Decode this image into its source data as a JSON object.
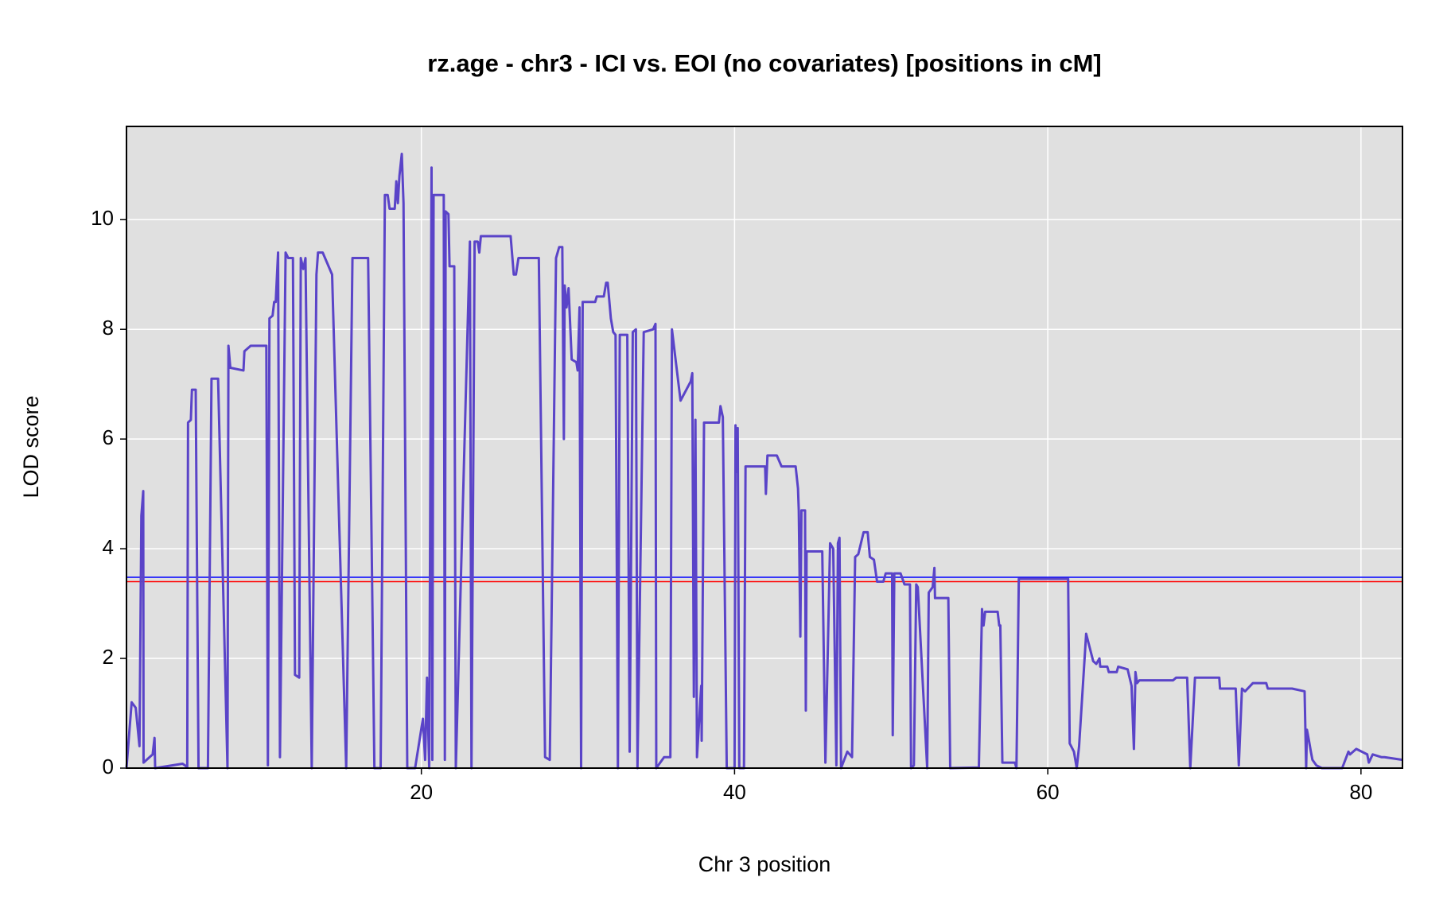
{
  "chart_data": {
    "type": "line",
    "title": "rz.age - chr3 - ICI vs. EOI (no covariates) [positions in cM]",
    "x_label": "Chr 3 position",
    "y_label": "LOD score",
    "color": "#5a44c8",
    "x": [
      1.17,
      1.5,
      1.76,
      2.0,
      2.12,
      2.24,
      2.26,
      2.84,
      2.96,
      3.0,
      4.75,
      5.05,
      5.1,
      5.28,
      5.35,
      5.59,
      5.77,
      6.37,
      6.6,
      7.02,
      7.62,
      7.68,
      7.8,
      8.64,
      8.7,
      9.1,
      10.1,
      10.2,
      10.3,
      10.5,
      10.6,
      10.7,
      10.85,
      10.97,
      11.33,
      11.5,
      11.8,
      11.93,
      12.2,
      12.3,
      12.46,
      12.6,
      13.0,
      13.3,
      13.4,
      13.7,
      14.3,
      15.2,
      15.6,
      16.6,
      17.0,
      17.4,
      17.67,
      17.85,
      17.97,
      18.3,
      18.4,
      18.5,
      18.6,
      18.75,
      18.86,
      19.1,
      19.6,
      20.1,
      20.24,
      20.36,
      20.5,
      20.65,
      20.7,
      20.78,
      21.43,
      21.5,
      21.55,
      21.73,
      21.8,
      22.1,
      22.2,
      23.1,
      23.2,
      23.4,
      23.6,
      23.7,
      23.8,
      25.7,
      25.9,
      26.04,
      26.2,
      27.5,
      27.9,
      28.2,
      28.6,
      28.8,
      29.0,
      29.1,
      29.15,
      29.27,
      29.4,
      29.6,
      29.9,
      29.98,
      30.1,
      30.2,
      30.3,
      31.1,
      31.2,
      31.65,
      31.8,
      31.9,
      32.1,
      32.25,
      32.4,
      32.55,
      32.67,
      33.15,
      33.3,
      33.5,
      33.7,
      33.8,
      34.2,
      34.8,
      34.95,
      35.0,
      35.5,
      35.9,
      36.0,
      36.55,
      37.2,
      37.3,
      37.4,
      37.5,
      37.6,
      37.87,
      37.9,
      38.05,
      39.0,
      39.1,
      39.25,
      39.5,
      40.0,
      40.06,
      40.1,
      40.2,
      40.3,
      40.6,
      40.7,
      40.95,
      41.7,
      41.95,
      42.0,
      42.1,
      42.7,
      43.0,
      43.9,
      44.05,
      44.1,
      44.2,
      44.27,
      44.5,
      44.55,
      44.6,
      45.6,
      45.8,
      46.1,
      46.3,
      46.5,
      46.6,
      46.7,
      46.8,
      47.2,
      47.5,
      47.7,
      47.9,
      48.24,
      48.5,
      48.64,
      48.9,
      49.1,
      49.5,
      49.65,
      50.06,
      50.1,
      50.2,
      50.6,
      50.85,
      51.2,
      51.27,
      51.45,
      51.6,
      51.7,
      52.3,
      52.4,
      52.65,
      52.76,
      52.8,
      53.06,
      53.65,
      53.77,
      55.6,
      55.8,
      55.9,
      56.0,
      56.8,
      56.9,
      56.97,
      57.1,
      57.9,
      58.0,
      58.15,
      61.3,
      61.4,
      61.67,
      61.85,
      62.0,
      62.45,
      62.9,
      63.1,
      63.3,
      63.35,
      63.8,
      63.9,
      64.4,
      64.5,
      65.1,
      65.35,
      65.5,
      65.6,
      65.7,
      65.85,
      68.0,
      68.2,
      68.9,
      69.1,
      69.4,
      70.95,
      71.0,
      72.0,
      72.2,
      72.4,
      72.6,
      73.1,
      73.95,
      74.05,
      75.6,
      76.4,
      76.5,
      76.55,
      76.68,
      76.8,
      76.9,
      77.15,
      77.5,
      78.8,
      79.2,
      79.3,
      79.7,
      80.4,
      80.5,
      80.75,
      81.3,
      81.5,
      82.65
    ],
    "values": [
      0,
      1.2,
      1.1,
      0.4,
      4.6,
      5.05,
      0.1,
      0.25,
      0.55,
      0,
      0.08,
      0.02,
      6.3,
      6.35,
      6.9,
      6.9,
      0,
      0,
      7.1,
      7.1,
      0,
      7.7,
      7.3,
      7.25,
      7.6,
      7.7,
      7.7,
      0.05,
      8.2,
      8.25,
      8.5,
      8.5,
      9.4,
      0.2,
      9.4,
      9.3,
      9.3,
      1.7,
      1.65,
      9.3,
      9.1,
      9.3,
      0,
      9.0,
      9.4,
      9.4,
      9.0,
      0,
      9.3,
      9.3,
      0,
      0,
      10.45,
      10.45,
      10.2,
      10.2,
      10.7,
      10.3,
      10.8,
      11.2,
      10.3,
      0,
      0,
      0.9,
      0.15,
      1.65,
      0,
      10.95,
      0.15,
      10.45,
      10.45,
      0.15,
      10.15,
      10.1,
      9.15,
      9.15,
      0,
      9.6,
      0,
      9.6,
      9.6,
      9.4,
      9.7,
      9.7,
      9.0,
      9.0,
      9.3,
      9.3,
      0.2,
      0.15,
      9.3,
      9.5,
      9.5,
      6.0,
      8.8,
      8.4,
      8.75,
      7.45,
      7.4,
      7.25,
      8.4,
      0,
      8.5,
      8.5,
      8.6,
      8.6,
      8.85,
      8.85,
      8.2,
      7.95,
      7.9,
      0,
      7.9,
      7.9,
      0.3,
      7.95,
      8.0,
      0,
      7.95,
      8.0,
      8.1,
      0,
      0.2,
      0.2,
      8.0,
      6.7,
      7.05,
      7.2,
      1.3,
      6.35,
      0.2,
      1.5,
      0.5,
      6.3,
      6.3,
      6.6,
      6.4,
      0,
      0,
      6.25,
      5.4,
      6.2,
      0,
      0,
      5.5,
      5.5,
      5.5,
      5.5,
      5.0,
      5.7,
      5.7,
      5.5,
      5.5,
      5.1,
      4.7,
      2.4,
      4.7,
      4.7,
      1.05,
      3.95,
      3.95,
      0.1,
      4.1,
      4.0,
      0.05,
      4.1,
      4.2,
      0,
      0.3,
      0.2,
      3.85,
      3.9,
      4.3,
      4.3,
      3.85,
      3.8,
      3.4,
      3.4,
      3.55,
      3.55,
      0.6,
      3.55,
      3.55,
      3.35,
      3.35,
      0,
      0.05,
      3.35,
      3.3,
      0,
      3.2,
      3.3,
      3.65,
      3.1,
      3.1,
      3.1,
      0,
      0.01,
      2.9,
      2.6,
      2.85,
      2.85,
      2.6,
      2.6,
      0.1,
      0.1,
      0,
      3.45,
      3.45,
      0.45,
      0.3,
      0,
      0.4,
      2.45,
      1.95,
      1.9,
      2.0,
      1.85,
      1.85,
      1.75,
      1.75,
      1.85,
      1.8,
      1.5,
      0.35,
      1.75,
      1.55,
      1.6,
      1.6,
      1.65,
      1.65,
      0,
      1.65,
      1.65,
      1.45,
      1.45,
      0.05,
      1.45,
      1.4,
      1.55,
      1.55,
      1.45,
      1.45,
      1.4,
      0,
      0.7,
      0.5,
      0.3,
      0.15,
      0.05,
      0,
      0,
      0.3,
      0.25,
      0.35,
      0.25,
      0.1,
      0.25,
      0.2,
      0.2,
      0.15
    ],
    "thresholds": [
      {
        "value": 3.48,
        "color": "#0000ff"
      },
      {
        "value": 3.4,
        "color": "#ff0000"
      }
    ],
    "xlim": [
      1.17,
      82.65
    ],
    "ylim": [
      0,
      11.7
    ],
    "xticks": [
      20,
      40,
      60,
      80
    ],
    "yticks": [
      0,
      2,
      4,
      6,
      8,
      10
    ],
    "grid": true,
    "background": "#e0e0e0"
  }
}
